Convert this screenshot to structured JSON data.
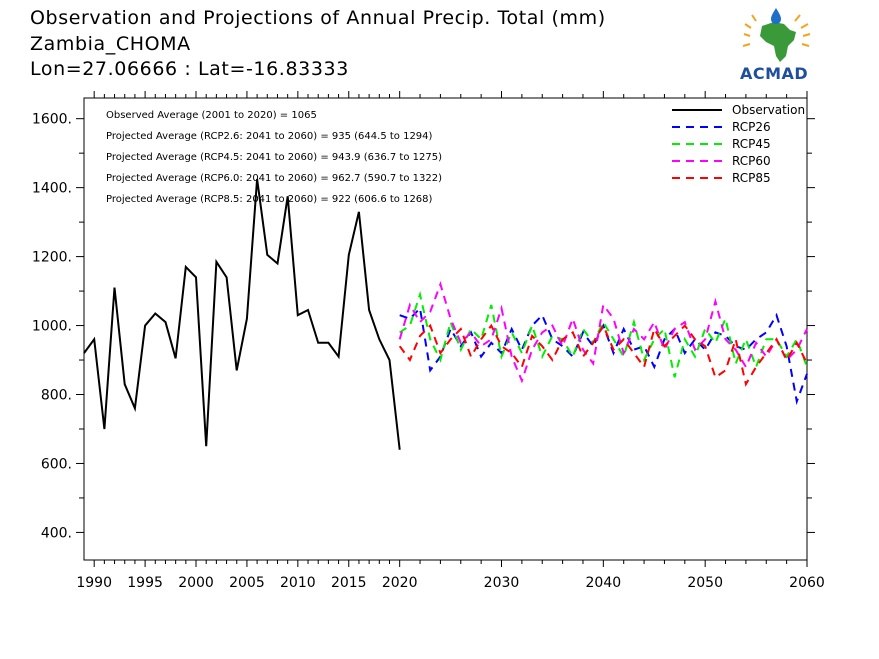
{
  "header": {
    "title": "Observation and Projections of Annual Precip. Total (mm)",
    "location": "Zambia_CHOMA",
    "coords": "Lon=27.06666 : Lat=-16.83333"
  },
  "logo": {
    "text": "ACMAD"
  },
  "colors": {
    "Observation": "#000000",
    "RCP26": "#0000ff",
    "RCP45": "#00ee00",
    "RCP60": "#ff00ff",
    "RCP85": "#ff0000"
  },
  "chart_data": {
    "type": "line",
    "xlim": [
      1989,
      2060
    ],
    "ylim": [
      320,
      1660
    ],
    "x_ticks": [
      1990,
      1995,
      2000,
      2005,
      2010,
      2015,
      2020,
      2030,
      2040,
      2050,
      2060
    ],
    "y_ticks": [
      400,
      600,
      800,
      1000,
      1200,
      1400,
      1600
    ],
    "y_tick_labels": [
      "400.",
      "600.",
      "800.",
      "1000.",
      "1200.",
      "1400.",
      "1600."
    ],
    "annotations": [
      "Observed Average (2001 to 2020) = 1065",
      "Projected Average (RCP2.6: 2041 to 2060) = 935 (644.5 to 1294)",
      "Projected Average (RCP4.5: 2041 to 2060) = 943.9 (636.7 to 1275)",
      "Projected Average (RCP6.0: 2041 to 2060) = 962.7 (590.7 to 1322)",
      "Projected Average (RCP8.5: 2041 to 2060) = 922 (606.6 to 1268)"
    ],
    "legend_position": "top-right",
    "series": [
      {
        "name": "Observation",
        "style": "solid",
        "x": [
          1989,
          1990,
          1991,
          1992,
          1993,
          1994,
          1995,
          1996,
          1997,
          1998,
          1999,
          2000,
          2001,
          2002,
          2003,
          2004,
          2005,
          2006,
          2007,
          2008,
          2009,
          2010,
          2011,
          2012,
          2013,
          2014,
          2015,
          2016,
          2017,
          2018,
          2019,
          2020
        ],
        "y": [
          920,
          960,
          700,
          1110,
          830,
          760,
          1000,
          1035,
          1010,
          905,
          1170,
          1140,
          650,
          1185,
          1140,
          870,
          1020,
          1425,
          1205,
          1180,
          1375,
          1030,
          1045,
          950,
          950,
          910,
          1205,
          1330,
          1045,
          960,
          900,
          640
        ]
      },
      {
        "name": "RCP26",
        "style": "dashed",
        "x": [
          2020,
          2021,
          2022,
          2023,
          2024,
          2025,
          2026,
          2027,
          2028,
          2029,
          2030,
          2031,
          2032,
          2033,
          2034,
          2035,
          2036,
          2037,
          2038,
          2039,
          2040,
          2041,
          2042,
          2043,
          2044,
          2045,
          2046,
          2047,
          2048,
          2049,
          2050,
          2051,
          2052,
          2053,
          2054,
          2055,
          2056,
          2057,
          2058,
          2059,
          2060
        ],
        "y": [
          1030,
          1020,
          1050,
          870,
          910,
          990,
          940,
          980,
          910,
          950,
          920,
          990,
          930,
          1000,
          1030,
          960,
          940,
          910,
          980,
          940,
          1000,
          920,
          990,
          930,
          940,
          880,
          960,
          990,
          920,
          960,
          930,
          980,
          970,
          940,
          930,
          960,
          980,
          1030,
          940,
          780,
          860
        ]
      },
      {
        "name": "RCP45",
        "style": "dashed",
        "x": [
          2020,
          2021,
          2022,
          2023,
          2024,
          2025,
          2026,
          2027,
          2028,
          2029,
          2030,
          2031,
          2032,
          2033,
          2034,
          2035,
          2036,
          2037,
          2038,
          2039,
          2040,
          2041,
          2042,
          2043,
          2044,
          2045,
          2046,
          2047,
          2048,
          2049,
          2050,
          2051,
          2052,
          2053,
          2054,
          2055,
          2056,
          2057,
          2058,
          2059,
          2060
        ],
        "y": [
          980,
          1000,
          1090,
          960,
          900,
          1010,
          930,
          990,
          960,
          1060,
          910,
          980,
          920,
          1000,
          910,
          970,
          960,
          910,
          990,
          950,
          1010,
          960,
          910,
          1010,
          900,
          960,
          990,
          850,
          960,
          910,
          990,
          950,
          1020,
          890,
          960,
          880,
          960,
          960,
          910,
          960,
          880
        ]
      },
      {
        "name": "RCP60",
        "style": "dashed",
        "x": [
          2020,
          2021,
          2022,
          2023,
          2024,
          2025,
          2026,
          2027,
          2028,
          2029,
          2030,
          2031,
          2032,
          2033,
          2034,
          2035,
          2036,
          2037,
          2038,
          2039,
          2040,
          2041,
          2042,
          2043,
          2044,
          2045,
          2046,
          2047,
          2048,
          2049,
          2050,
          2051,
          2052,
          2053,
          2054,
          2055,
          2056,
          2057,
          2058,
          2059,
          2060
        ],
        "y": [
          960,
          1060,
          1010,
          1040,
          1120,
          1020,
          950,
          980,
          940,
          960,
          1050,
          910,
          840,
          930,
          980,
          1000,
          940,
          1020,
          930,
          890,
          1060,
          1020,
          920,
          990,
          960,
          1010,
          930,
          990,
          1010,
          930,
          960,
          1070,
          960,
          930,
          880,
          950,
          910,
          960,
          900,
          930,
          990
        ]
      },
      {
        "name": "RCP85",
        "style": "dashed",
        "x": [
          2020,
          2021,
          2022,
          2023,
          2024,
          2025,
          2026,
          2027,
          2028,
          2029,
          2030,
          2031,
          2032,
          2033,
          2034,
          2035,
          2036,
          2037,
          2038,
          2039,
          2040,
          2041,
          2042,
          2043,
          2044,
          2045,
          2046,
          2047,
          2048,
          2049,
          2050,
          2051,
          2052,
          2053,
          2054,
          2055,
          2056,
          2057,
          2058,
          2059,
          2060
        ],
        "y": [
          940,
          900,
          970,
          1000,
          920,
          960,
          990,
          910,
          960,
          1000,
          940,
          920,
          880,
          970,
          940,
          900,
          960,
          980,
          910,
          950,
          1000,
          930,
          960,
          920,
          880,
          990,
          940,
          970,
          1000,
          960,
          940,
          850,
          870,
          960,
          830,
          880,
          920,
          960,
          900,
          950,
          890
        ]
      }
    ]
  }
}
